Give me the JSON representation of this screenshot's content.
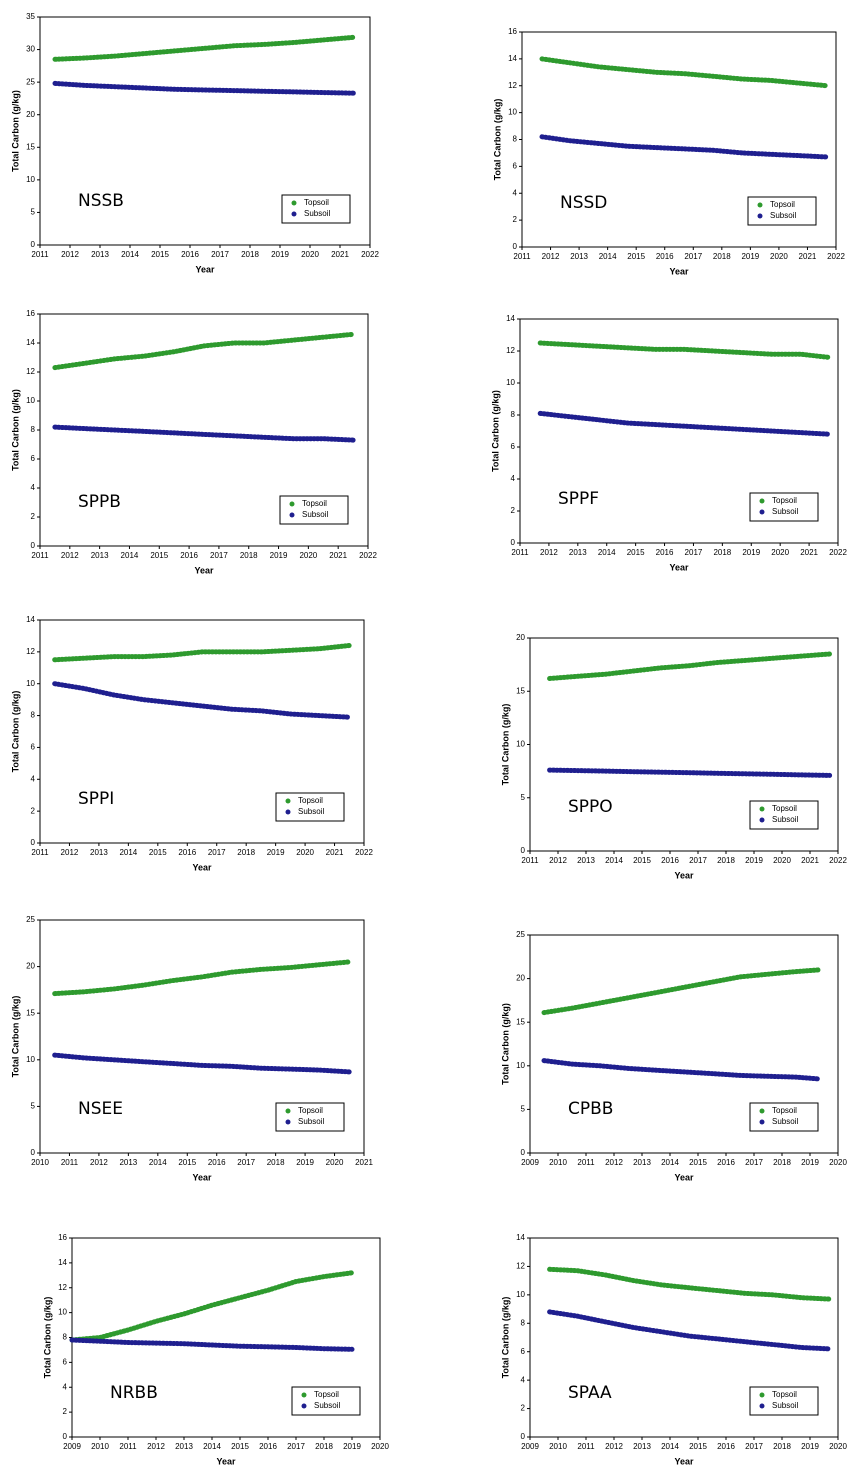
{
  "chart_data": [
    {
      "type": "line",
      "annotation": "NSSB",
      "x_label": "Year",
      "y_label": "Total Carbon (g/kg)",
      "legend": "lower right",
      "xlim": [
        2011,
        2022
      ],
      "xticks": [
        2011,
        2012,
        2013,
        2014,
        2015,
        2016,
        2017,
        2018,
        2019,
        2020,
        2021,
        2022
      ],
      "ylim": [
        0,
        35
      ],
      "yticks": [
        0,
        5,
        10,
        15,
        20,
        25,
        30,
        35
      ],
      "x": [
        2011.5,
        2012.5,
        2013.5,
        2014.5,
        2015.5,
        2016.5,
        2017.5,
        2018.5,
        2019.5,
        2020.5,
        2021.5
      ],
      "series": [
        {
          "name": "Topsoil",
          "color": "#2e9a2e",
          "values": [
            28.5,
            28.7,
            29.0,
            29.4,
            29.8,
            30.2,
            30.6,
            30.8,
            31.1,
            31.5,
            31.9
          ]
        },
        {
          "name": "Subsoil",
          "color": "#1f1f8f",
          "values": [
            24.8,
            24.5,
            24.3,
            24.1,
            23.9,
            23.8,
            23.7,
            23.6,
            23.5,
            23.4,
            23.3
          ]
        }
      ]
    },
    {
      "type": "line",
      "annotation": "NSSD",
      "x_label": "Year",
      "y_label": "Total Carbon (g/kg)",
      "legend": "lower right",
      "xlim": [
        2011,
        2022
      ],
      "xticks": [
        2011,
        2012,
        2013,
        2014,
        2015,
        2016,
        2017,
        2018,
        2019,
        2020,
        2021,
        2022
      ],
      "ylim": [
        0,
        16
      ],
      "yticks": [
        0,
        2,
        4,
        6,
        8,
        10,
        12,
        14,
        16
      ],
      "x": [
        2011.7,
        2012.7,
        2013.7,
        2014.7,
        2015.7,
        2016.7,
        2017.7,
        2018.7,
        2019.7,
        2020.7,
        2021.7
      ],
      "series": [
        {
          "name": "Topsoil",
          "color": "#2e9a2e",
          "values": [
            14.0,
            13.7,
            13.4,
            13.2,
            13.0,
            12.9,
            12.7,
            12.5,
            12.4,
            12.2,
            12.0
          ]
        },
        {
          "name": "Subsoil",
          "color": "#1f1f8f",
          "values": [
            8.2,
            7.9,
            7.7,
            7.5,
            7.4,
            7.3,
            7.2,
            7.0,
            6.9,
            6.8,
            6.7
          ]
        }
      ]
    },
    {
      "type": "line",
      "annotation": "SPPB",
      "x_label": "Year",
      "y_label": "Total Carbon (g/kg)",
      "legend": "lower right",
      "xlim": [
        2011,
        2022
      ],
      "xticks": [
        2011,
        2012,
        2013,
        2014,
        2015,
        2016,
        2017,
        2018,
        2019,
        2020,
        2021,
        2022
      ],
      "ylim": [
        0,
        16
      ],
      "yticks": [
        0,
        2,
        4,
        6,
        8,
        10,
        12,
        14,
        16
      ],
      "x": [
        2011.5,
        2012.5,
        2013.5,
        2014.5,
        2015.5,
        2016.5,
        2017.5,
        2018.5,
        2019.5,
        2020.5,
        2021.5
      ],
      "series": [
        {
          "name": "Topsoil",
          "color": "#2e9a2e",
          "values": [
            12.3,
            12.6,
            12.9,
            13.1,
            13.4,
            13.8,
            14.0,
            14.0,
            14.2,
            14.4,
            14.6
          ]
        },
        {
          "name": "Subsoil",
          "color": "#1f1f8f",
          "values": [
            8.2,
            8.1,
            8.0,
            7.9,
            7.8,
            7.7,
            7.6,
            7.5,
            7.4,
            7.4,
            7.3
          ]
        }
      ]
    },
    {
      "type": "line",
      "annotation": "SPPF",
      "x_label": "Year",
      "y_label": "Total Carbon (g/kg)",
      "legend": "lower right",
      "xlim": [
        2011,
        2022
      ],
      "xticks": [
        2011,
        2012,
        2013,
        2014,
        2015,
        2016,
        2017,
        2018,
        2019,
        2020,
        2021,
        2022
      ],
      "ylim": [
        0,
        14
      ],
      "yticks": [
        0,
        2,
        4,
        6,
        8,
        10,
        12,
        14
      ],
      "x": [
        2011.7,
        2012.7,
        2013.7,
        2014.7,
        2015.7,
        2016.7,
        2017.7,
        2018.7,
        2019.7,
        2020.7,
        2021.7
      ],
      "series": [
        {
          "name": "Topsoil",
          "color": "#2e9a2e",
          "values": [
            12.5,
            12.4,
            12.3,
            12.2,
            12.1,
            12.1,
            12.0,
            11.9,
            11.8,
            11.8,
            11.6
          ]
        },
        {
          "name": "Subsoil",
          "color": "#1f1f8f",
          "values": [
            8.1,
            7.9,
            7.7,
            7.5,
            7.4,
            7.3,
            7.2,
            7.1,
            7.0,
            6.9,
            6.8
          ]
        }
      ]
    },
    {
      "type": "line",
      "annotation": "SPPI",
      "x_label": "Year",
      "y_label": "Total Carbon (g/kg)",
      "legend": "lower right",
      "xlim": [
        2011,
        2022
      ],
      "xticks": [
        2011,
        2012,
        2013,
        2014,
        2015,
        2016,
        2017,
        2018,
        2019,
        2020,
        2021,
        2022
      ],
      "ylim": [
        0,
        14
      ],
      "yticks": [
        0,
        2,
        4,
        6,
        8,
        10,
        12,
        14
      ],
      "x": [
        2011.5,
        2012.5,
        2013.5,
        2014.5,
        2015.5,
        2016.5,
        2017.5,
        2018.5,
        2019.5,
        2020.5,
        2021.5
      ],
      "series": [
        {
          "name": "Topsoil",
          "color": "#2e9a2e",
          "values": [
            11.5,
            11.6,
            11.7,
            11.7,
            11.8,
            12.0,
            12.0,
            12.0,
            12.1,
            12.2,
            12.4
          ]
        },
        {
          "name": "Subsoil",
          "color": "#1f1f8f",
          "values": [
            10.0,
            9.7,
            9.3,
            9.0,
            8.8,
            8.6,
            8.4,
            8.3,
            8.1,
            8.0,
            7.9
          ]
        }
      ]
    },
    {
      "type": "line",
      "annotation": "SPPO",
      "x_label": "Year",
      "y_label": "Total Carbon (g/kg)",
      "legend": "lower right",
      "xlim": [
        2011,
        2022
      ],
      "xticks": [
        2011,
        2012,
        2013,
        2014,
        2015,
        2016,
        2017,
        2018,
        2019,
        2020,
        2021,
        2022
      ],
      "ylim": [
        0,
        20
      ],
      "yticks": [
        0,
        5,
        10,
        15,
        20
      ],
      "x": [
        2011.7,
        2012.7,
        2013.7,
        2014.7,
        2015.7,
        2016.7,
        2017.7,
        2018.7,
        2019.7,
        2020.7,
        2021.7
      ],
      "series": [
        {
          "name": "Topsoil",
          "color": "#2e9a2e",
          "values": [
            16.2,
            16.4,
            16.6,
            16.9,
            17.2,
            17.4,
            17.7,
            17.9,
            18.1,
            18.3,
            18.5
          ]
        },
        {
          "name": "Subsoil",
          "color": "#1f1f8f",
          "values": [
            7.6,
            7.55,
            7.5,
            7.45,
            7.4,
            7.35,
            7.3,
            7.25,
            7.2,
            7.15,
            7.1
          ]
        }
      ]
    },
    {
      "type": "line",
      "annotation": "NSEE",
      "x_label": "Year",
      "y_label": "Total Carbon (g/kg)",
      "legend": "lower right",
      "xlim": [
        2010,
        2021
      ],
      "xticks": [
        2010,
        2011,
        2012,
        2013,
        2014,
        2015,
        2016,
        2017,
        2018,
        2019,
        2020,
        2021
      ],
      "ylim": [
        0,
        25
      ],
      "yticks": [
        0,
        5,
        10,
        15,
        20,
        25
      ],
      "x": [
        2010.5,
        2011.5,
        2012.5,
        2013.5,
        2014.5,
        2015.5,
        2016.5,
        2017.5,
        2018.5,
        2019.5,
        2020.5
      ],
      "series": [
        {
          "name": "Topsoil",
          "color": "#2e9a2e",
          "values": [
            17.1,
            17.3,
            17.6,
            18.0,
            18.5,
            18.9,
            19.4,
            19.7,
            19.9,
            20.2,
            20.5
          ]
        },
        {
          "name": "Subsoil",
          "color": "#1f1f8f",
          "values": [
            10.5,
            10.2,
            10.0,
            9.8,
            9.6,
            9.4,
            9.3,
            9.1,
            9.0,
            8.9,
            8.7
          ]
        }
      ]
    },
    {
      "type": "line",
      "annotation": "CPBB",
      "x_label": "Year",
      "y_label": "Total Carbon (g/kg)",
      "legend": "lower right",
      "xlim": [
        2009,
        2020
      ],
      "xticks": [
        2009,
        2010,
        2011,
        2012,
        2013,
        2014,
        2015,
        2016,
        2017,
        2018,
        2019,
        2020
      ],
      "ylim": [
        0,
        25
      ],
      "yticks": [
        0,
        5,
        10,
        15,
        20,
        25
      ],
      "x": [
        2009.5,
        2010.5,
        2011.5,
        2012.5,
        2013.5,
        2014.5,
        2015.5,
        2016.5,
        2017.5,
        2018.5,
        2019.3
      ],
      "series": [
        {
          "name": "Topsoil",
          "color": "#2e9a2e",
          "values": [
            16.1,
            16.6,
            17.2,
            17.8,
            18.4,
            19.0,
            19.6,
            20.2,
            20.5,
            20.8,
            21.0
          ]
        },
        {
          "name": "Subsoil",
          "color": "#1f1f8f",
          "values": [
            10.6,
            10.2,
            10.0,
            9.7,
            9.5,
            9.3,
            9.1,
            8.9,
            8.8,
            8.7,
            8.5
          ]
        }
      ]
    },
    {
      "type": "line",
      "annotation": "NRBB",
      "x_label": "Year",
      "y_label": "Total Carbon (g/kg)",
      "legend": "lower right",
      "xlim": [
        2009,
        2020
      ],
      "xticks": [
        2009,
        2010,
        2011,
        2012,
        2013,
        2014,
        2015,
        2016,
        2017,
        2018,
        2019,
        2020
      ],
      "ylim": [
        0,
        16
      ],
      "yticks": [
        0,
        2,
        4,
        6,
        8,
        10,
        12,
        14,
        16
      ],
      "x": [
        2009,
        2010,
        2011,
        2012,
        2013,
        2014,
        2015,
        2016,
        2017,
        2018,
        2019
      ],
      "series": [
        {
          "name": "Topsoil",
          "color": "#2e9a2e",
          "values": [
            7.8,
            8.0,
            8.6,
            9.3,
            9.9,
            10.6,
            11.2,
            11.8,
            12.5,
            12.9,
            13.2
          ]
        },
        {
          "name": "Subsoil",
          "color": "#1f1f8f",
          "values": [
            7.8,
            7.7,
            7.6,
            7.55,
            7.5,
            7.4,
            7.3,
            7.25,
            7.2,
            7.1,
            7.05
          ]
        }
      ]
    },
    {
      "type": "line",
      "annotation": "SPAA",
      "x_label": "Year",
      "y_label": "Total Carbon (g/kg)",
      "legend": "lower right",
      "xlim": [
        2009,
        2020
      ],
      "xticks": [
        2009,
        2010,
        2011,
        2012,
        2013,
        2014,
        2015,
        2016,
        2017,
        2018,
        2019,
        2020
      ],
      "ylim": [
        0,
        14
      ],
      "yticks": [
        0,
        2,
        4,
        6,
        8,
        10,
        12,
        14
      ],
      "x": [
        2009.7,
        2010.7,
        2011.7,
        2012.7,
        2013.7,
        2014.7,
        2015.7,
        2016.7,
        2017.7,
        2018.7,
        2019.7
      ],
      "series": [
        {
          "name": "Topsoil",
          "color": "#2e9a2e",
          "values": [
            11.8,
            11.7,
            11.4,
            11.0,
            10.7,
            10.5,
            10.3,
            10.1,
            10.0,
            9.8,
            9.7
          ]
        },
        {
          "name": "Subsoil",
          "color": "#1f1f8f",
          "values": [
            8.8,
            8.5,
            8.1,
            7.7,
            7.4,
            7.1,
            6.9,
            6.7,
            6.5,
            6.3,
            6.2
          ]
        }
      ]
    }
  ]
}
